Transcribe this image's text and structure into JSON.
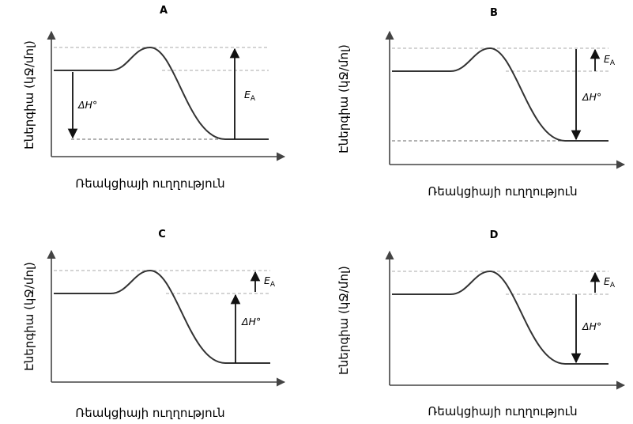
{
  "panels": [
    {
      "title": "A"
    },
    {
      "title": "B"
    },
    {
      "title": "C"
    },
    {
      "title": "D"
    }
  ],
  "y_label": "Էներգիա (կՋ/մոլ)",
  "x_label": "Ռեակցիայի ուղղություն",
  "labels": {
    "delta_h": "ΔH°",
    "ea_main": "E",
    "ea_sub": "A"
  }
}
